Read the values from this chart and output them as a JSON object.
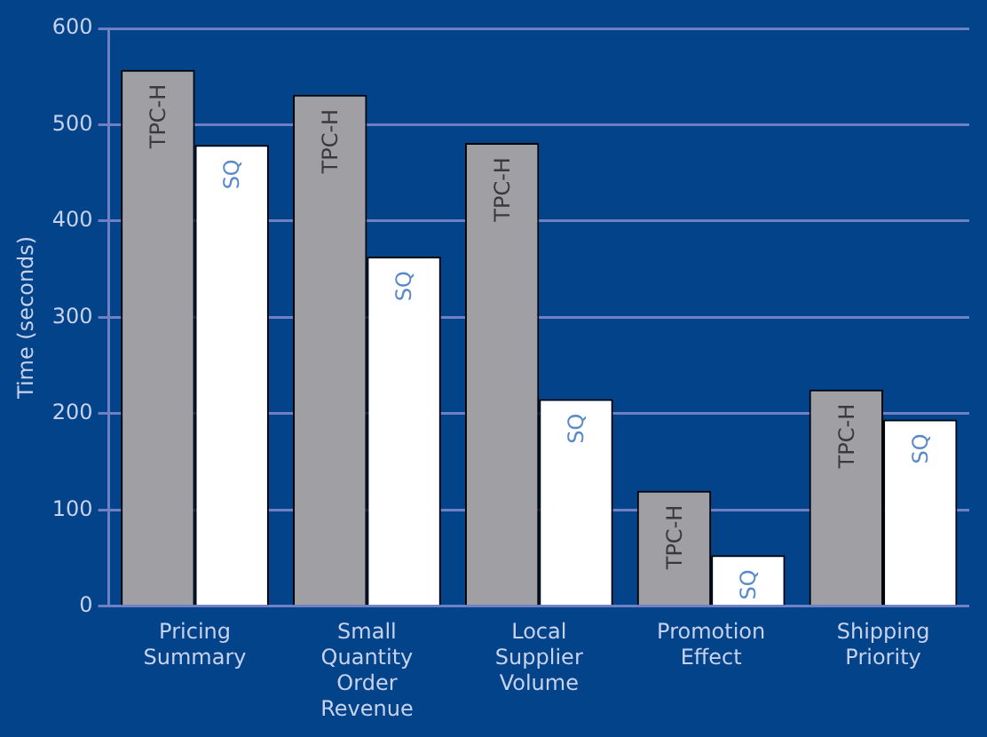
{
  "chart_data": {
    "type": "bar",
    "ylabel": "Time (seconds)",
    "categories": [
      "Pricing Summary",
      "Small Quantity Order Revenue",
      "Local Supplier Volume",
      "Promotion Effect",
      "Shipping Priority"
    ],
    "series": [
      {
        "name": "TPC-H",
        "color": "#a0a0a4",
        "values": [
          557,
          531,
          481,
          120,
          225
        ]
      },
      {
        "name": "SQ",
        "color": "#ffffff",
        "values": [
          479,
          363,
          215,
          53,
          194
        ]
      }
    ],
    "ylim": [
      0,
      600
    ],
    "yticks": [
      0,
      100,
      200,
      300,
      400,
      500,
      600
    ],
    "grid": "y",
    "legend": false
  }
}
